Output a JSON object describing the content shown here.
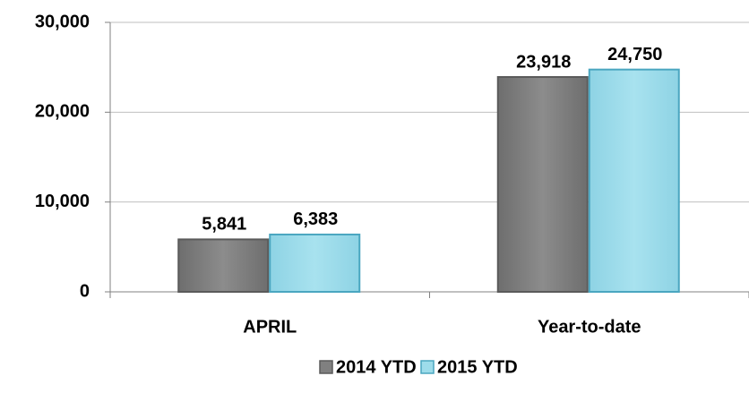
{
  "chart_data": {
    "type": "bar",
    "categories": [
      "APRIL",
      "Year-to-date"
    ],
    "series": [
      {
        "name": "2014 YTD",
        "color": "#808080",
        "values": [
          5841,
          23918
        ],
        "value_labels": [
          "5,841",
          "23,918"
        ]
      },
      {
        "name": "2015 YTD",
        "color": "#9ddcea",
        "values": [
          6383,
          24750
        ],
        "value_labels": [
          "6,383",
          "24,750"
        ]
      }
    ],
    "ylim": [
      0,
      30000
    ],
    "yticks": [
      0,
      {
        "value": 10000,
        "label": "10,000"
      },
      {
        "value": 20000,
        "label": "20,000"
      },
      {
        "value": 30000,
        "label": "30,000"
      }
    ],
    "grid": true,
    "legend": "bottom"
  }
}
